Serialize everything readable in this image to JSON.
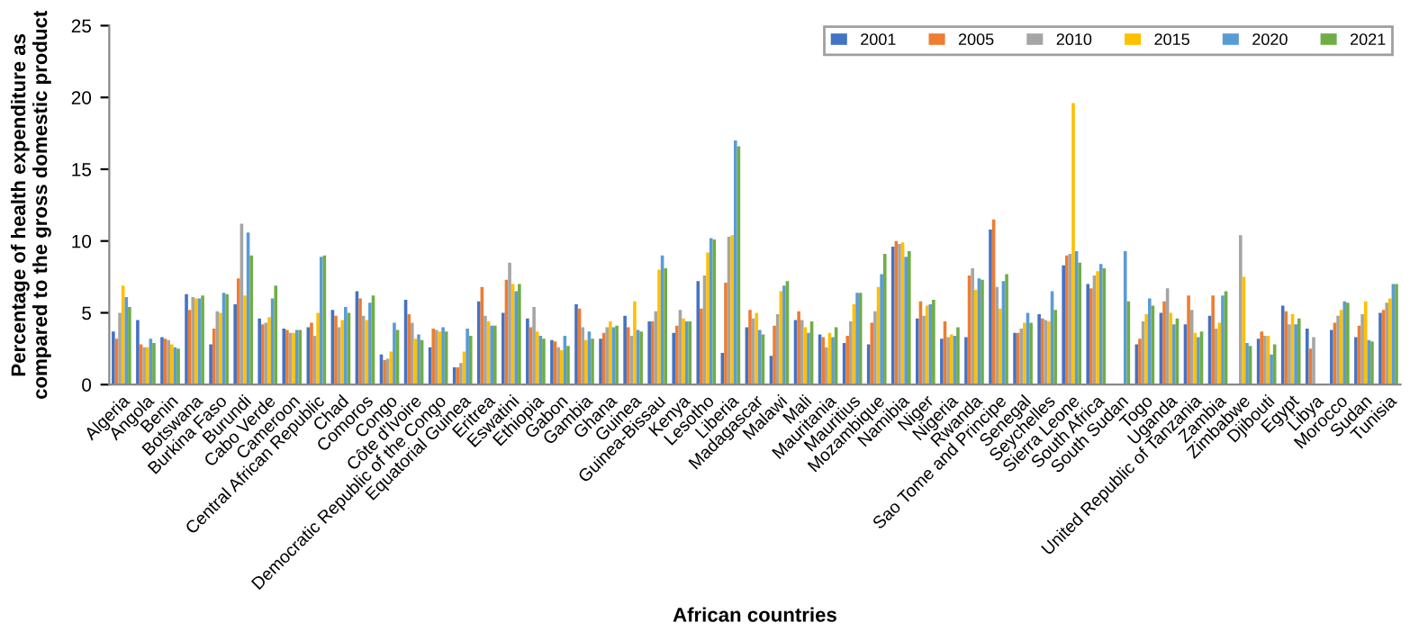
{
  "chart_data": {
    "type": "bar",
    "xlabel": "African countries",
    "ylabel": "Percentage of health expenditure as\ncompared to the gross domestic product",
    "categories": [
      "Algeria",
      "Angola",
      "Benin",
      "Botswana",
      "Burkina Faso",
      "Burundi",
      "Cabo Verde",
      "Cameroon",
      "Central African Republic",
      "Chad",
      "Comoros",
      "Congo",
      "Côte d'Ivoire",
      "Democratic Republic of the Congo",
      "Equatorial Guinea",
      "Eritrea",
      "Eswatini",
      "Ethiopia",
      "Gabon",
      "Gambia",
      "Ghana",
      "Guinea",
      "Guinea-Bissau",
      "Kenya",
      "Lesotho",
      "Liberia",
      "Madagascar",
      "Malawi",
      "Mali",
      "Mauritania",
      "Mauritius",
      "Mozambique",
      "Namibia",
      "Niger",
      "Nigeria",
      "Rwanda",
      "Sao Tome and Principe",
      "Senegal",
      "Seychelles",
      "Sierra Leone",
      "South Africa",
      "South Sudan",
      "Togo",
      "Uganda",
      "United Republic of Tanzania",
      "Zambia",
      "Zimbabwe",
      "Djibouti",
      "Egypt",
      "Libya",
      "Morocco",
      "Sudan",
      "Tunisia"
    ],
    "series": [
      {
        "name": "2001",
        "color": "#4472c4",
        "values": [
          3.7,
          4.5,
          3.3,
          6.3,
          2.8,
          5.6,
          4.6,
          3.9,
          4.0,
          5.2,
          6.5,
          2.1,
          5.9,
          2.6,
          1.2,
          5.8,
          5.0,
          4.6,
          3.1,
          5.6,
          3.2,
          4.8,
          4.4,
          3.6,
          7.2,
          2.2,
          4.0,
          2.0,
          4.5,
          3.5,
          2.9,
          2.8,
          9.6,
          4.6,
          3.2,
          3.3,
          10.8,
          3.6,
          4.9,
          8.3,
          7.0,
          null,
          2.8,
          5.0,
          4.2,
          4.8,
          null,
          3.2,
          5.5,
          3.9,
          3.8,
          3.3,
          5.0
        ]
      },
      {
        "name": "2005",
        "color": "#ed7d31",
        "values": [
          3.2,
          2.8,
          3.2,
          5.2,
          3.9,
          7.4,
          4.2,
          3.8,
          4.3,
          4.8,
          6.0,
          1.7,
          4.9,
          3.9,
          1.2,
          6.8,
          7.3,
          4.0,
          3.0,
          5.3,
          3.6,
          4.0,
          4.4,
          4.1,
          5.3,
          7.1,
          5.2,
          4.1,
          5.1,
          3.3,
          3.4,
          4.3,
          10.0,
          5.8,
          4.4,
          7.6,
          11.5,
          3.6,
          4.6,
          9.0,
          6.7,
          null,
          3.2,
          5.8,
          6.2,
          6.2,
          null,
          3.7,
          5.1,
          2.5,
          4.3,
          4.1,
          5.2
        ]
      },
      {
        "name": "2010",
        "color": "#a5a5a5",
        "values": [
          5.0,
          2.6,
          3.1,
          6.1,
          5.1,
          11.2,
          4.3,
          3.6,
          3.4,
          4.0,
          4.8,
          1.8,
          4.3,
          3.8,
          1.5,
          4.8,
          8.5,
          5.4,
          2.6,
          4.0,
          4.0,
          3.4,
          5.1,
          5.2,
          7.6,
          10.3,
          4.6,
          4.9,
          4.5,
          2.6,
          4.4,
          5.1,
          9.8,
          4.8,
          3.3,
          8.1,
          6.8,
          3.9,
          4.5,
          9.1,
          7.6,
          null,
          4.4,
          6.7,
          5.2,
          3.9,
          10.4,
          3.4,
          4.2,
          3.3,
          4.8,
          4.9,
          5.7
        ]
      },
      {
        "name": "2015",
        "color": "#ffc000",
        "values": [
          6.9,
          2.6,
          2.8,
          6.0,
          5.0,
          6.2,
          4.7,
          3.6,
          5.0,
          4.5,
          4.5,
          2.3,
          3.2,
          3.7,
          2.3,
          4.4,
          7.0,
          3.7,
          2.4,
          3.1,
          4.4,
          5.8,
          8.0,
          4.6,
          9.2,
          10.4,
          5.0,
          6.5,
          4.0,
          3.6,
          5.6,
          6.8,
          9.9,
          5.5,
          3.5,
          6.6,
          5.3,
          4.3,
          4.4,
          19.6,
          7.9,
          null,
          4.9,
          5.0,
          3.6,
          4.3,
          7.5,
          3.4,
          4.9,
          null,
          5.2,
          5.8,
          6.0
        ]
      },
      {
        "name": "2020",
        "color": "#5b9bd5",
        "values": [
          6.1,
          3.2,
          2.6,
          6.0,
          6.4,
          10.6,
          6.0,
          3.8,
          8.9,
          5.4,
          5.7,
          4.3,
          3.5,
          4.0,
          3.9,
          4.1,
          6.5,
          3.4,
          3.4,
          3.7,
          4.0,
          3.8,
          9.0,
          4.4,
          10.2,
          17.0,
          3.8,
          6.9,
          3.6,
          3.3,
          6.4,
          7.7,
          8.9,
          5.6,
          3.4,
          7.4,
          7.2,
          5.0,
          6.5,
          9.3,
          8.4,
          9.3,
          6.0,
          4.2,
          3.3,
          6.2,
          2.9,
          2.1,
          4.2,
          null,
          5.8,
          3.1,
          7.0
        ]
      },
      {
        "name": "2021",
        "color": "#70ad47",
        "values": [
          5.4,
          2.9,
          2.5,
          6.2,
          6.3,
          9.0,
          6.9,
          3.8,
          9.0,
          5.0,
          6.2,
          3.8,
          3.1,
          3.7,
          3.4,
          4.1,
          7.0,
          3.2,
          2.7,
          3.2,
          4.1,
          3.7,
          8.1,
          4.4,
          10.1,
          16.6,
          3.5,
          7.2,
          4.4,
          4.0,
          6.4,
          9.1,
          9.3,
          5.9,
          4.0,
          7.3,
          7.7,
          4.3,
          5.2,
          8.5,
          8.1,
          5.8,
          5.5,
          4.6,
          3.7,
          6.5,
          2.7,
          2.8,
          4.6,
          null,
          5.7,
          3.0,
          7.0
        ]
      }
    ],
    "ylim": [
      0,
      25
    ],
    "yticks": [
      0,
      5,
      10,
      15,
      20,
      25
    ],
    "legend": "top right"
  }
}
